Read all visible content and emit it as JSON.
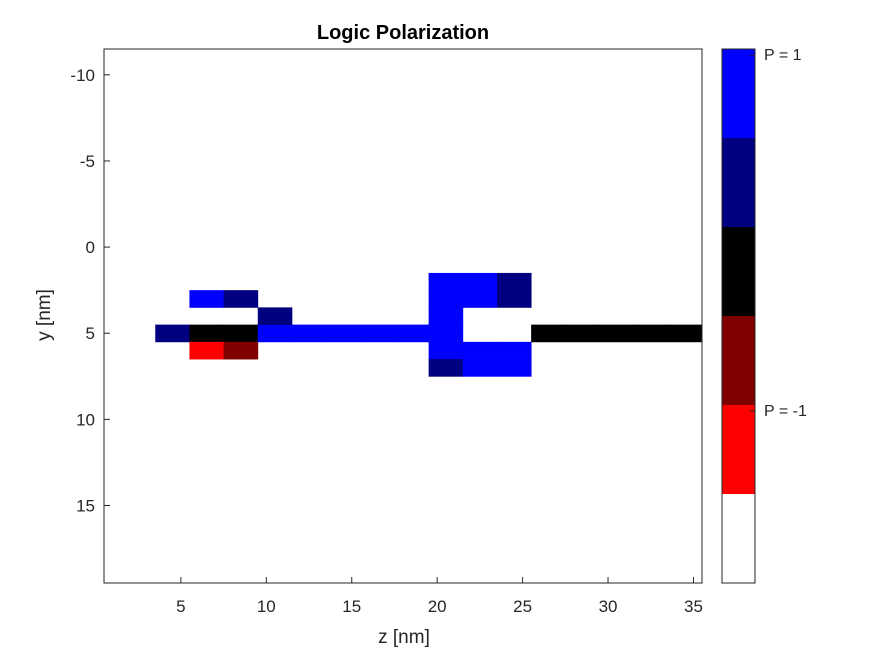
{
  "chart_data": {
    "type": "heatmap",
    "title": "Logic Polarization",
    "xlabel": "z [nm]",
    "ylabel": "y [nm]",
    "xlim": [
      0.5,
      35.5
    ],
    "ylim": [
      -11.5,
      19.5
    ],
    "y_reversed": true,
    "xticks": [
      5,
      10,
      15,
      20,
      25,
      30,
      35
    ],
    "yticks": [
      -10,
      -5,
      0,
      5,
      10,
      15
    ],
    "cell_width": 2,
    "cell_height": 1,
    "cells": [
      {
        "z": 4.5,
        "y": 5,
        "P": 0.5
      },
      {
        "z": 6.5,
        "y": 3,
        "P": 1
      },
      {
        "z": 8.5,
        "y": 3,
        "P": 0.5
      },
      {
        "z": 6.5,
        "y": 5,
        "P": 0
      },
      {
        "z": 8.5,
        "y": 5,
        "P": 0
      },
      {
        "z": 6.5,
        "y": 6,
        "P": -1
      },
      {
        "z": 8.5,
        "y": 6,
        "P": -0.5
      },
      {
        "z": 10.5,
        "y": 5,
        "P": 1
      },
      {
        "z": 10.5,
        "y": 4,
        "P": 0.5
      },
      {
        "z": 12.5,
        "y": 5,
        "P": 1
      },
      {
        "z": 14.5,
        "y": 5,
        "P": 1
      },
      {
        "z": 16.5,
        "y": 5,
        "P": 1
      },
      {
        "z": 18.5,
        "y": 5,
        "P": 1
      },
      {
        "z": 20.5,
        "y": 2,
        "P": 1
      },
      {
        "z": 20.5,
        "y": 3,
        "P": 1
      },
      {
        "z": 20.5,
        "y": 4,
        "P": 1
      },
      {
        "z": 20.5,
        "y": 5,
        "P": 1
      },
      {
        "z": 20.5,
        "y": 6,
        "P": 1
      },
      {
        "z": 20.5,
        "y": 7,
        "P": 0.5
      },
      {
        "z": 22.5,
        "y": 2,
        "P": 1
      },
      {
        "z": 22.5,
        "y": 3,
        "P": 1
      },
      {
        "z": 24.5,
        "y": 2,
        "P": 0.5
      },
      {
        "z": 24.5,
        "y": 3,
        "P": 0.5
      },
      {
        "z": 22.5,
        "y": 6,
        "P": 1
      },
      {
        "z": 22.5,
        "y": 7,
        "P": 1
      },
      {
        "z": 24.5,
        "y": 6,
        "P": 1
      },
      {
        "z": 24.5,
        "y": 7,
        "P": 1
      },
      {
        "z": 26.5,
        "y": 5,
        "P": 0
      },
      {
        "z": 28.5,
        "y": 5,
        "P": 0
      },
      {
        "z": 30.5,
        "y": 5,
        "P": 0
      },
      {
        "z": 32.5,
        "y": 5,
        "P": 0
      },
      {
        "z": 34.5,
        "y": 5,
        "P": 0
      }
    ],
    "colormap": [
      {
        "P": 1,
        "color": "#0000ff"
      },
      {
        "P": 0.5,
        "color": "#000080"
      },
      {
        "P": 0,
        "color": "#000000"
      },
      {
        "P": -0.5,
        "color": "#800000"
      },
      {
        "P": -1,
        "color": "#ff0000"
      },
      {
        "P": null,
        "color": "#ffffff"
      }
    ],
    "colorbar_labels": [
      {
        "text": "P = 1",
        "level": 0
      },
      {
        "text": "P = -1",
        "level": 4
      }
    ],
    "grid": false
  }
}
